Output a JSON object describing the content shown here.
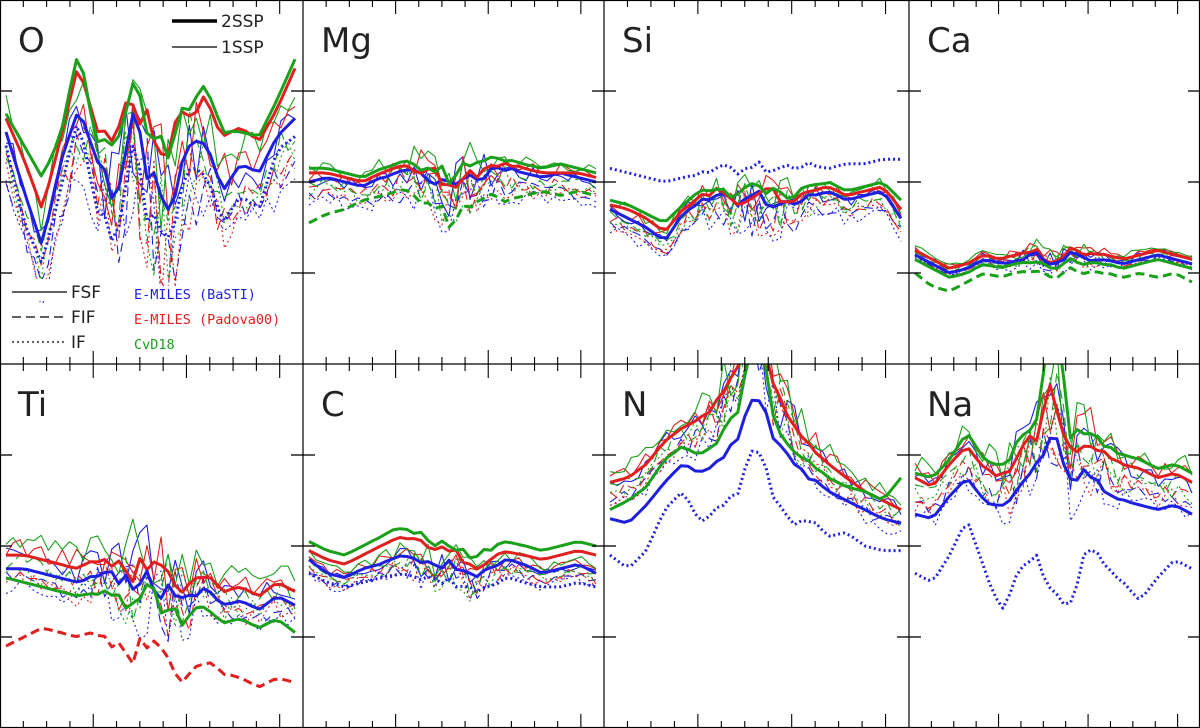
{
  "figure": {
    "type": "multi-panel line plot",
    "legend": {
      "weights": [
        {
          "label": "2SSP",
          "style": "thick"
        },
        {
          "label": "1SSP",
          "style": "thin"
        }
      ],
      "methods": [
        {
          "label": "FSF",
          "dash": "solid"
        },
        {
          "label": "FIF",
          "dash": "dashed"
        },
        {
          "label": "IF",
          "dash": "dotted"
        }
      ],
      "libraries": [
        {
          "label": "E-MILES (BaSTI)",
          "color": "#1f1fe0"
        },
        {
          "label": "E-MILES (Padova00)",
          "color": "#e01f1f"
        },
        {
          "label": "CvD18",
          "color": "#1aa01a"
        }
      ]
    }
  },
  "chart_data": [
    {
      "type": "line",
      "title": "O",
      "baseline": 0,
      "ylim": [
        -4,
        4
      ],
      "amp": 2.0,
      "seed": 3,
      "series": [
        {
          "library": "E-MILES (BaSTI)",
          "method": "FSF",
          "weight": "2SSP",
          "values": [
            1.1,
            -0.2,
            -1.4,
            0.4,
            1.6,
            0.6,
            -0.3,
            1.3,
            0.2,
            -0.5,
            0.8,
            0.9,
            -0.2,
            0.4,
            0.2,
            1.0,
            1.4
          ]
        },
        {
          "library": "E-MILES (Padova00)",
          "method": "FSF",
          "weight": "2SSP",
          "values": [
            1.4,
            0.5,
            -0.6,
            0.9,
            2.6,
            1.2,
            0.9,
            1.7,
            1.3,
            0.7,
            1.5,
            1.8,
            1.0,
            1.2,
            0.9,
            1.6,
            2.5
          ]
        },
        {
          "library": "CvD18",
          "method": "FSF",
          "weight": "2SSP",
          "values": [
            1.5,
            0.8,
            0.1,
            1.0,
            2.9,
            1.0,
            0.7,
            1.8,
            1.1,
            0.9,
            1.6,
            2.2,
            1.1,
            1.1,
            1.0,
            1.8,
            2.7
          ]
        },
        {
          "library": "E-MILES (BaSTI)",
          "method": "IF",
          "weight": "2SSP",
          "values": [
            0.8,
            -0.9,
            -1.8,
            -0.2,
            1.4,
            -0.5,
            -1.2,
            0.6,
            -0.8,
            -1.1,
            0.3,
            0.2,
            -0.9,
            -0.3,
            -0.6,
            0.7,
            1.0
          ]
        }
      ]
    },
    {
      "type": "line",
      "title": "Mg",
      "baseline": 0,
      "ylim": [
        -4,
        4
      ],
      "amp": 0.8,
      "seed": 7,
      "series": [
        {
          "library": "E-MILES (BaSTI)",
          "method": "FSF",
          "weight": "2SSP",
          "values": [
            0.0,
            0.1,
            0.0,
            -0.1,
            0.1,
            0.2,
            0.2,
            0.1,
            -0.2,
            0.1,
            0.2,
            0.3,
            0.2,
            0.1,
            0.2,
            0.1,
            0.0
          ]
        },
        {
          "library": "E-MILES (Padova00)",
          "method": "FSF",
          "weight": "2SSP",
          "values": [
            0.2,
            0.2,
            0.1,
            0.0,
            0.2,
            0.3,
            0.3,
            0.2,
            -0.1,
            0.2,
            0.3,
            0.4,
            0.3,
            0.2,
            0.2,
            0.2,
            0.1
          ]
        },
        {
          "library": "CvD18",
          "method": "FSF",
          "weight": "2SSP",
          "values": [
            0.3,
            0.3,
            0.2,
            0.1,
            0.3,
            0.4,
            0.4,
            0.3,
            0.1,
            0.4,
            0.5,
            0.5,
            0.4,
            0.3,
            0.4,
            0.3,
            0.2
          ]
        },
        {
          "library": "CvD18",
          "method": "FIF",
          "weight": "2SSP",
          "values": [
            -0.9,
            -0.7,
            -0.6,
            -0.4,
            -0.3,
            -0.2,
            -0.3,
            -0.5,
            -0.9,
            -0.5,
            -0.3,
            -0.4,
            -0.3,
            -0.2,
            -0.3,
            -0.2,
            -0.3
          ]
        }
      ]
    },
    {
      "type": "line",
      "title": "Si",
      "baseline": 0,
      "ylim": [
        -4,
        4
      ],
      "amp": 0.7,
      "seed": 11,
      "series": [
        {
          "library": "E-MILES (BaSTI)",
          "method": "FSF",
          "weight": "2SSP",
          "values": [
            -0.6,
            -0.8,
            -1.0,
            -1.3,
            -0.7,
            -0.4,
            -0.3,
            -0.5,
            -0.3,
            -0.4,
            -0.5,
            -0.3,
            -0.2,
            -0.4,
            -0.3,
            -0.2,
            -0.8
          ]
        },
        {
          "library": "E-MILES (Padova00)",
          "method": "FSF",
          "weight": "2SSP",
          "values": [
            -0.5,
            -0.6,
            -0.8,
            -1.1,
            -0.6,
            -0.3,
            -0.2,
            -0.4,
            -0.2,
            -0.3,
            -0.4,
            -0.2,
            -0.1,
            -0.3,
            -0.2,
            -0.1,
            -0.6
          ]
        },
        {
          "library": "CvD18",
          "method": "FSF",
          "weight": "2SSP",
          "values": [
            -0.4,
            -0.5,
            -0.7,
            -0.9,
            -0.5,
            -0.2,
            -0.1,
            -0.3,
            -0.1,
            -0.2,
            -0.3,
            -0.1,
            0.0,
            -0.2,
            -0.1,
            0.0,
            -0.4
          ]
        },
        {
          "library": "E-MILES (BaSTI)",
          "method": "IF",
          "weight": "2SSP",
          "values": [
            0.3,
            0.2,
            0.1,
            0.0,
            0.1,
            0.2,
            0.3,
            0.2,
            0.3,
            0.4,
            0.3,
            0.4,
            0.3,
            0.4,
            0.4,
            0.5,
            0.5
          ]
        }
      ]
    },
    {
      "type": "line",
      "title": "Ca",
      "baseline": -2,
      "ylim": [
        -4,
        4
      ],
      "amp": 0.3,
      "seed": 17,
      "series": [
        {
          "library": "E-MILES (Padova00)",
          "method": "FSF",
          "weight": "2SSP",
          "values": [
            -1.5,
            -1.7,
            -1.9,
            -1.8,
            -1.6,
            -1.7,
            -1.6,
            -1.5,
            -1.8,
            -1.5,
            -1.6,
            -1.6,
            -1.7,
            -1.6,
            -1.5,
            -1.6,
            -1.7
          ]
        },
        {
          "library": "E-MILES (BaSTI)",
          "method": "FSF",
          "weight": "2SSP",
          "values": [
            -1.6,
            -1.8,
            -2.0,
            -1.9,
            -1.7,
            -1.8,
            -1.7,
            -1.6,
            -1.9,
            -1.6,
            -1.7,
            -1.7,
            -1.8,
            -1.7,
            -1.6,
            -1.7,
            -1.8
          ]
        },
        {
          "library": "CvD18",
          "method": "FSF",
          "weight": "2SSP",
          "values": [
            -1.7,
            -1.9,
            -2.1,
            -2.0,
            -1.8,
            -1.9,
            -1.8,
            -1.7,
            -2.0,
            -1.7,
            -1.8,
            -1.8,
            -1.9,
            -1.8,
            -1.7,
            -1.8,
            -1.9
          ]
        },
        {
          "library": "CvD18",
          "method": "FIF",
          "weight": "2SSP",
          "values": [
            -2.0,
            -2.3,
            -2.4,
            -2.2,
            -2.0,
            -2.1,
            -2.0,
            -1.9,
            -2.2,
            -1.9,
            -2.0,
            -2.0,
            -2.1,
            -2.0,
            -2.1,
            -2.0,
            -2.2
          ]
        }
      ]
    },
    {
      "type": "line",
      "title": "Ti",
      "baseline": 0,
      "ylim": [
        -4,
        4
      ],
      "amp": 1.2,
      "seed": 23,
      "series": [
        {
          "library": "E-MILES (Padova00)",
          "method": "FSF",
          "weight": "2SSP",
          "values": [
            -0.2,
            -0.2,
            -0.3,
            -0.4,
            -0.5,
            -0.3,
            -0.4,
            -0.6,
            -0.4,
            -0.8,
            -0.9,
            -0.6,
            -1.0,
            -0.9,
            -1.1,
            -0.8,
            -1.0
          ]
        },
        {
          "library": "E-MILES (BaSTI)",
          "method": "FSF",
          "weight": "2SSP",
          "values": [
            -0.5,
            -0.5,
            -0.6,
            -0.7,
            -0.8,
            -0.6,
            -0.7,
            -0.9,
            -0.7,
            -1.1,
            -1.2,
            -0.9,
            -1.3,
            -1.2,
            -1.4,
            -1.1,
            -1.3
          ]
        },
        {
          "library": "CvD18",
          "method": "FSF",
          "weight": "2SSP",
          "values": [
            -0.7,
            -0.8,
            -0.9,
            -1.0,
            -1.1,
            -1.0,
            -1.1,
            -1.3,
            -1.1,
            -1.5,
            -1.6,
            -1.3,
            -1.7,
            -1.6,
            -1.8,
            -1.6,
            -1.9
          ]
        },
        {
          "library": "E-MILES (Padova00)",
          "method": "FIF",
          "weight": "2SSP",
          "values": [
            -2.2,
            -2.0,
            -1.8,
            -1.9,
            -2.0,
            -1.9,
            -2.2,
            -2.4,
            -2.1,
            -2.7,
            -2.9,
            -2.5,
            -2.8,
            -2.9,
            -3.1,
            -2.9,
            -3.0
          ]
        }
      ]
    },
    {
      "type": "line",
      "title": "C",
      "baseline": 0,
      "ylim": [
        -4,
        4
      ],
      "amp": 0.5,
      "seed": 29,
      "series": [
        {
          "library": "E-MILES (BaSTI)",
          "method": "FSF",
          "weight": "2SSP",
          "values": [
            -0.3,
            -0.6,
            -0.7,
            -0.5,
            -0.4,
            -0.2,
            -0.3,
            -0.5,
            -0.4,
            -0.7,
            -0.5,
            -0.3,
            -0.4,
            -0.6,
            -0.5,
            -0.4,
            -0.6
          ]
        },
        {
          "library": "E-MILES (Padova00)",
          "method": "FSF",
          "weight": "2SSP",
          "values": [
            -0.1,
            -0.3,
            -0.4,
            -0.2,
            0.0,
            0.2,
            0.1,
            -0.1,
            -0.1,
            -0.5,
            -0.3,
            -0.1,
            -0.2,
            -0.3,
            -0.2,
            -0.1,
            -0.2
          ]
        },
        {
          "library": "CvD18",
          "method": "FSF",
          "weight": "2SSP",
          "values": [
            0.1,
            -0.1,
            -0.2,
            0.0,
            0.2,
            0.4,
            0.3,
            0.1,
            0.1,
            -0.3,
            -0.1,
            0.1,
            0.0,
            -0.1,
            0.0,
            0.1,
            0.0
          ]
        },
        {
          "library": "E-MILES (BaSTI)",
          "method": "IF",
          "weight": "2SSP",
          "values": [
            -0.6,
            -0.8,
            -0.9,
            -0.8,
            -0.7,
            -0.6,
            -0.7,
            -0.8,
            -0.8,
            -1.0,
            -0.9,
            -0.7,
            -0.8,
            -0.9,
            -0.9,
            -0.8,
            -0.9
          ]
        }
      ]
    },
    {
      "type": "line",
      "title": "N",
      "baseline": 0,
      "ylim": [
        -4,
        4
      ],
      "amp": 0.9,
      "seed": 31,
      "series": [
        {
          "library": "E-MILES (Padova00)",
          "method": "FSF",
          "weight": "2SSP",
          "values": [
            1.4,
            1.5,
            1.8,
            2.3,
            2.6,
            2.8,
            3.2,
            3.8,
            5.1,
            3.5,
            2.7,
            2.2,
            1.8,
            1.5,
            1.2,
            1.0,
            0.8
          ]
        },
        {
          "library": "E-MILES (BaSTI)",
          "method": "FSF",
          "weight": "2SSP",
          "values": [
            0.6,
            0.5,
            0.9,
            1.4,
            1.8,
            1.6,
            1.9,
            2.5,
            3.5,
            2.3,
            1.8,
            1.5,
            1.2,
            1.0,
            0.8,
            0.6,
            0.5
          ]
        },
        {
          "library": "CvD18",
          "method": "FSF",
          "weight": "2SSP",
          "values": [
            0.8,
            1.0,
            1.3,
            1.9,
            2.2,
            2.0,
            2.4,
            3.0,
            4.8,
            2.9,
            2.1,
            1.8,
            1.5,
            1.3,
            1.2,
            1.0,
            1.5
          ]
        },
        {
          "library": "E-MILES (BaSTI)",
          "method": "IF",
          "weight": "2SSP",
          "values": [
            -0.2,
            -0.5,
            -0.1,
            0.8,
            1.2,
            0.5,
            0.9,
            1.3,
            2.4,
            1.0,
            0.4,
            0.6,
            0.2,
            0.3,
            0.0,
            -0.1,
            -0.1
          ]
        }
      ]
    },
    {
      "type": "line",
      "title": "Na",
      "baseline": 0,
      "ylim": [
        -4,
        4
      ],
      "amp": 1.2,
      "seed": 37,
      "series": [
        {
          "library": "E-MILES (Padova00)",
          "method": "FSF",
          "weight": "2SSP",
          "values": [
            1.5,
            1.3,
            1.8,
            2.2,
            1.7,
            1.5,
            2.0,
            2.4,
            3.5,
            2.1,
            2.3,
            2.0,
            1.8,
            1.7,
            1.5,
            1.6,
            1.4
          ]
        },
        {
          "library": "E-MILES (BaSTI)",
          "method": "FSF",
          "weight": "2SSP",
          "values": [
            0.7,
            0.6,
            1.1,
            1.5,
            1.0,
            0.8,
            1.4,
            1.8,
            2.6,
            1.4,
            1.6,
            1.2,
            1.0,
            0.9,
            0.8,
            0.9,
            0.7
          ]
        },
        {
          "library": "CvD18",
          "method": "FSF",
          "weight": "2SSP",
          "values": [
            1.6,
            1.5,
            1.9,
            2.5,
            1.9,
            1.7,
            2.3,
            2.6,
            5.6,
            2.4,
            2.6,
            2.2,
            2.0,
            1.9,
            1.7,
            1.8,
            1.6
          ]
        },
        {
          "library": "E-MILES (BaSTI)",
          "method": "IF",
          "weight": "2SSP",
          "values": [
            -0.6,
            -0.8,
            -0.2,
            0.6,
            -0.5,
            -1.5,
            -0.4,
            -0.2,
            -1.0,
            -1.3,
            0.0,
            -0.4,
            -0.8,
            -1.2,
            -0.7,
            -0.3,
            -0.5
          ]
        }
      ]
    }
  ]
}
